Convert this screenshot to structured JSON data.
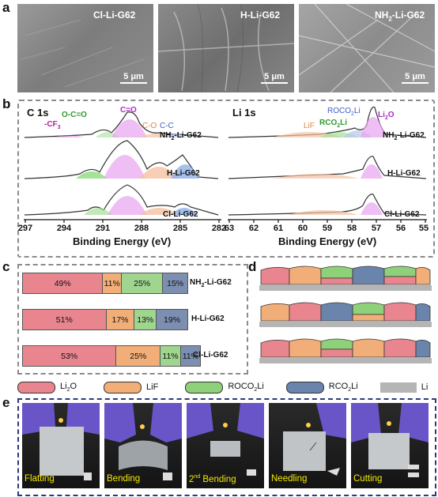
{
  "panels": {
    "a": "a",
    "b": "b",
    "c": "c",
    "d": "d",
    "e": "e"
  },
  "sem": [
    {
      "title": "Cl-Li-G62",
      "scale": "5 μm"
    },
    {
      "title": "H-Li-G62",
      "scale": "5 μm"
    },
    {
      "title_main": "NH",
      "title_sub": "2",
      "title_rest": "-Li-G62",
      "scale": "5 μm"
    }
  ],
  "xps": {
    "c1s": {
      "title": "C 1s",
      "ticks": [
        "297",
        "294",
        "291",
        "288",
        "285",
        "282"
      ],
      "xlabel": "Binding Energy (eV)",
      "peaks": {
        "cf3": "-CF",
        "cf3_sub": "3",
        "oco": "O-C=O",
        "co_double": "C=O",
        "co": "C-O",
        "cc": "C-C"
      },
      "traces": {
        "nh2_main": "NH",
        "nh2_sub": "2",
        "nh2_rest": "-Li-G62",
        "h": "H-Li-G62",
        "cl": "Cl-Li-G62"
      }
    },
    "li1s": {
      "title": "Li 1s",
      "ticks": [
        "63",
        "62",
        "61",
        "60",
        "59",
        "58",
        "57",
        "56",
        "55"
      ],
      "xlabel": "Binding Energy (eV)",
      "peaks": {
        "rocoli_main": "ROCO",
        "rocoli_sub": "2",
        "rocoli_rest": "Li",
        "li2o_main": "Li",
        "li2o_sub": "2",
        "li2o_rest": "O",
        "lif": "LiF",
        "rco2li_main": "RCO",
        "rco2li_sub": "2",
        "rco2li_rest": "Li"
      },
      "traces": {
        "nh2_main": "NH",
        "nh2_sub": "2",
        "nh2_rest": "-Li-G62",
        "h": "H-Li-G62",
        "cl": "Cl-Li-G62"
      }
    }
  },
  "composition": {
    "rows": [
      {
        "label_main": "NH",
        "label_sub": "2",
        "label_rest": "-Li-G62",
        "values": [
          49,
          11,
          25,
          15
        ],
        "texts": [
          "49%",
          "11%",
          "25%",
          "15%"
        ]
      },
      {
        "label_main": "H-Li-G62",
        "label_sub": "",
        "label_rest": "",
        "values": [
          51,
          17,
          13,
          19
        ],
        "texts": [
          "51%",
          "17%",
          "13%",
          "19%"
        ]
      },
      {
        "label_main": "Cl-Li-G62",
        "label_sub": "",
        "label_rest": "",
        "values": [
          53,
          25,
          11,
          11
        ],
        "texts": [
          "53%",
          "25%",
          "11%",
          "11%"
        ]
      }
    ],
    "colors": [
      "#e9858f",
      "#f2ae78",
      "#9fd58f",
      "#7c8fb0"
    ]
  },
  "legend": [
    {
      "main": "Li",
      "sub": "2",
      "rest": "O",
      "color": "#e9858f"
    },
    {
      "main": "LiF",
      "sub": "",
      "rest": "",
      "color": "#f2ae78"
    },
    {
      "main": "ROCO",
      "sub": "2",
      "rest": "Li",
      "color": "#8fd07a"
    },
    {
      "main": "RCO",
      "sub": "2",
      "rest": "Li",
      "color": "#6b84ac"
    },
    {
      "main": "Li",
      "sub": "",
      "rest": "",
      "color": "#b5b5b5"
    }
  ],
  "photos": [
    {
      "caption_main": "Flatting",
      "caption_sup": "",
      "caption_rest": ""
    },
    {
      "caption_main": "Bending",
      "caption_sup": "",
      "caption_rest": ""
    },
    {
      "caption_main": "2",
      "caption_sup": "nd",
      "caption_rest": " Bending"
    },
    {
      "caption_main": "Needling",
      "caption_sup": "",
      "caption_rest": ""
    },
    {
      "caption_main": "Cutting",
      "caption_sup": "",
      "caption_rest": ""
    }
  ]
}
